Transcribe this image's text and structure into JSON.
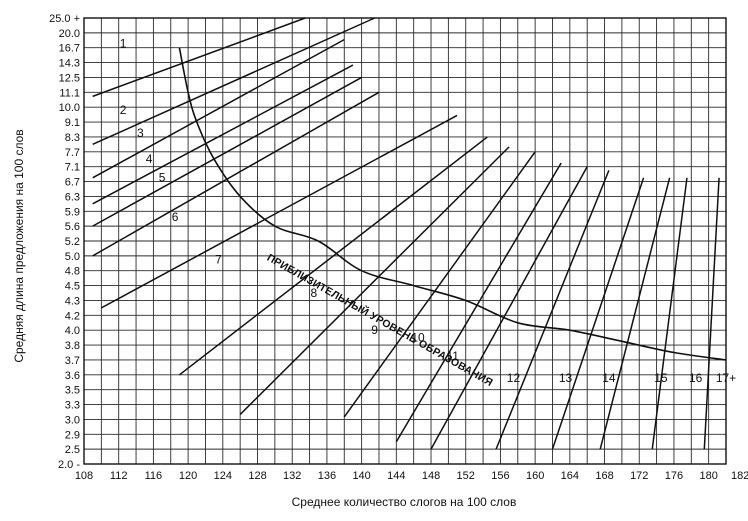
{
  "chart_data": {
    "type": "line",
    "title": "",
    "xlabel": "Среднее количество слогов на 100 слов",
    "ylabel": "Средняя длина предложения на 100 слов",
    "x_range": [
      108,
      182
    ],
    "x_ticks": [
      "108",
      "112",
      "116",
      "120",
      "124",
      "128",
      "132",
      "136",
      "140",
      "144",
      "148",
      "152",
      "156",
      "160",
      "164",
      "168",
      "172",
      "176",
      "180",
      "182+"
    ],
    "y_ticks": [
      "2.0 -",
      "2.5",
      "2.9",
      "3.0",
      "3.3",
      "3.5",
      "3.6",
      "3.7",
      "3.8",
      "4.0",
      "4.2",
      "4.3",
      "4.5",
      "4.8",
      "5.0",
      "5.2",
      "5.6",
      "5.9",
      "6.3",
      "6.7",
      "7.1",
      "7.7",
      "8.3",
      "9.1",
      "10.0",
      "11.1",
      "12.5",
      "14.3",
      "16.7",
      "20.0",
      "25.0 +"
    ],
    "grid": true,
    "curve_label": "ПРИБЛИЗИТЕЛЬНЫЙ УРОВЕНЬ ОБРАЗОВАНИЯ",
    "curve": {
      "name": "boundary",
      "points": [
        [
          119,
          16.7
        ],
        [
          120,
          11.1
        ],
        [
          121,
          9.1
        ],
        [
          123,
          7.4
        ],
        [
          126,
          6.3
        ],
        [
          130,
          5.6
        ],
        [
          135,
          5.2
        ],
        [
          140,
          4.8
        ],
        [
          146,
          4.5
        ],
        [
          152,
          4.3
        ],
        [
          158,
          4.1
        ],
        [
          164,
          4.0
        ],
        [
          170,
          3.85
        ],
        [
          176,
          3.75
        ],
        [
          182,
          3.7
        ]
      ]
    },
    "series": [
      {
        "name": "1",
        "label": "1",
        "label_at": [
          112.5,
          16.7
        ],
        "points": [
          [
            109,
            10.8
          ],
          [
            133.5,
            25.0
          ]
        ]
      },
      {
        "name": "2",
        "label": "2",
        "label_at": [
          112.5,
          9.6
        ],
        "points": [
          [
            109,
            8.0
          ],
          [
            141.5,
            25.0
          ]
        ]
      },
      {
        "name": "3",
        "label": "3",
        "label_at": [
          114.5,
          8.3
        ],
        "points": [
          [
            109,
            6.8
          ],
          [
            138,
            18.5
          ]
        ]
      },
      {
        "name": "4",
        "label": "4",
        "label_at": [
          115.5,
          7.25
        ],
        "points": [
          [
            109,
            6.1
          ],
          [
            139,
            14.0
          ]
        ]
      },
      {
        "name": "5",
        "label": "5",
        "label_at": [
          117,
          6.7
        ],
        "points": [
          [
            109,
            5.6
          ],
          [
            140,
            12.5
          ]
        ]
      },
      {
        "name": "6",
        "label": "6",
        "label_at": [
          118.5,
          5.7
        ],
        "points": [
          [
            109,
            5.0
          ],
          [
            142,
            11.1
          ]
        ]
      },
      {
        "name": "7",
        "label": "7",
        "label_at": [
          123.5,
          4.9
        ],
        "points": [
          [
            110,
            4.25
          ],
          [
            151,
            9.5
          ]
        ]
      },
      {
        "name": "8",
        "label": "8",
        "label_at": [
          134.5,
          4.35
        ],
        "points": [
          [
            119,
            3.6
          ],
          [
            154.5,
            8.3
          ]
        ]
      },
      {
        "name": "9",
        "label": "9",
        "label_at": [
          141.5,
          3.95
        ],
        "points": [
          [
            126,
            3.1
          ],
          [
            157,
            7.9
          ]
        ]
      },
      {
        "name": "10",
        "label": "10",
        "label_at": [
          146.5,
          3.85
        ],
        "points": [
          [
            138,
            3.05
          ],
          [
            160,
            7.7
          ]
        ]
      },
      {
        "name": "11",
        "label": "11",
        "label_at": [
          150.5,
          3.7
        ],
        "points": [
          [
            144,
            2.7
          ],
          [
            163,
            7.25
          ]
        ]
      },
      {
        "name": "12",
        "label": "12",
        "label_at": [
          157.5,
          3.55
        ],
        "points": [
          [
            148,
            2.5
          ],
          [
            166,
            7.1
          ]
        ]
      },
      {
        "name": "13",
        "label": "13",
        "label_at": [
          163.5,
          3.55
        ],
        "points": [
          [
            155.5,
            2.5
          ],
          [
            168.5,
            7.0
          ]
        ]
      },
      {
        "name": "14",
        "label": "14",
        "label_at": [
          168.5,
          3.55
        ],
        "points": [
          [
            162,
            2.5
          ],
          [
            172.5,
            6.8
          ]
        ]
      },
      {
        "name": "15",
        "label": "15",
        "label_at": [
          174.5,
          3.55
        ],
        "points": [
          [
            167.5,
            2.5
          ],
          [
            175.5,
            6.8
          ]
        ]
      },
      {
        "name": "16",
        "label": "16",
        "label_at": [
          178.5,
          3.55
        ],
        "points": [
          [
            173.5,
            2.5
          ],
          [
            177.5,
            6.8
          ]
        ]
      },
      {
        "name": "17+",
        "label": "17+",
        "label_at": [
          182,
          3.55
        ],
        "points": [
          [
            179.5,
            2.5
          ],
          [
            181.2,
            6.8
          ]
        ]
      }
    ]
  }
}
